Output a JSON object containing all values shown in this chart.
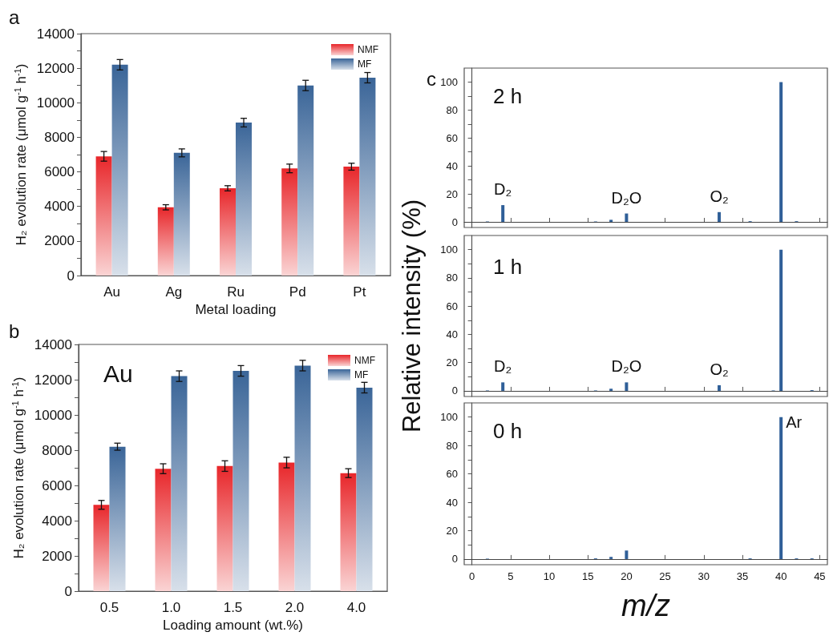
{
  "chart_data": [
    {
      "type": "bar",
      "title": "a",
      "xlabel": "Metal loading",
      "ylabel": "H₂ evolution rate (μmol g$^{-1}$ h$^{-1}$)",
      "categories": [
        "Au",
        "Ag",
        "Ru",
        "Pd",
        "Pt"
      ],
      "series": [
        {
          "name": "NMF",
          "color": "#e8262a",
          "values": [
            6900,
            3950,
            5050,
            6200,
            6300
          ],
          "errors": [
            280,
            150,
            150,
            250,
            200
          ]
        },
        {
          "name": "MF",
          "color": "#3a6598",
          "values": [
            12200,
            7100,
            8850,
            11000,
            11450
          ],
          "errors": [
            300,
            230,
            250,
            300,
            300
          ]
        }
      ],
      "ylim": [
        0,
        14000
      ],
      "yticks": [
        0,
        {
          "value": 1000,
          "label": null
        },
        2000,
        {
          "value": 3000,
          "label": null
        },
        4000,
        {
          "value": 5000,
          "label": null
        },
        6000,
        {
          "value": 7000,
          "label": null
        },
        8000,
        {
          "value": 9000,
          "label": null
        },
        10000,
        {
          "value": 11000,
          "label": null
        },
        12000,
        {
          "value": 13000,
          "label": null
        },
        14000
      ],
      "legend": "top right"
    },
    {
      "type": "bar",
      "title": "b",
      "subtitle": "Au",
      "xlabel": "Loading amount (wt.%)",
      "ylabel": "H₂ evolution rate (μmol g$^{-1}$ h$^{-1}$)",
      "categories": [
        "0.5",
        "1.0",
        "1.5",
        "2.0",
        "4.0"
      ],
      "series": [
        {
          "name": "NMF",
          "color": "#e8262a",
          "values": [
            4900,
            6950,
            7100,
            7300,
            6700
          ],
          "errors": [
            250,
            280,
            300,
            300,
            250
          ]
        },
        {
          "name": "MF",
          "color": "#3a6598",
          "values": [
            8200,
            12200,
            12500,
            12800,
            11550
          ],
          "errors": [
            200,
            300,
            300,
            300,
            300
          ]
        }
      ],
      "ylim": [
        0,
        14000
      ],
      "yticks": [
        0,
        {
          "value": 1000,
          "label": null
        },
        2000,
        {
          "value": 3000,
          "label": null
        },
        4000,
        {
          "value": 5000,
          "label": null
        },
        6000,
        {
          "value": 7000,
          "label": null
        },
        8000,
        {
          "value": 9000,
          "label": null
        },
        10000,
        {
          "value": 11000,
          "label": null
        },
        12000,
        {
          "value": 13000,
          "label": null
        },
        14000
      ],
      "legend": "top right"
    },
    {
      "type": "bar",
      "title": "c",
      "subtitle": "2 h",
      "color": "#2f5f98",
      "x": [
        2,
        4,
        16,
        18,
        20,
        32,
        36,
        40,
        42
      ],
      "values": [
        0.3,
        12,
        0.3,
        1.5,
        6,
        7,
        0.5,
        100,
        0.5
      ],
      "xlim": [
        -1,
        46
      ],
      "xticks": [
        0,
        5,
        10,
        15,
        20,
        25,
        30,
        35,
        40,
        45
      ],
      "ylim": [
        -4,
        110
      ],
      "yticks": [
        0,
        {
          "value": 10,
          "label": null
        },
        20,
        {
          "value": 30,
          "label": null
        },
        40,
        {
          "value": 50,
          "label": null
        },
        60,
        {
          "value": 70,
          "label": null
        },
        80,
        {
          "value": 90,
          "label": null
        },
        100
      ],
      "tick_labels": "y",
      "ref_lines": [
        {
          "axis": "y",
          "value": 0
        }
      ],
      "annotations": [
        {
          "text": "D₂",
          "x": 4,
          "y": 12
        },
        {
          "text": "D₂O",
          "x": 20,
          "y": 6
        },
        {
          "text": "O₂",
          "x": 32,
          "y": 7
        }
      ]
    },
    {
      "type": "bar",
      "subtitle": "1 h",
      "ylabel": "Relative intensity (%)",
      "color": "#2f5f98",
      "x": [
        2,
        4,
        16,
        18,
        20,
        32,
        39,
        40,
        44
      ],
      "values": [
        0.3,
        6,
        0.3,
        1.5,
        6,
        4,
        0.3,
        100,
        0.5
      ],
      "xlim": [
        -1,
        46
      ],
      "xticks": [
        0,
        5,
        10,
        15,
        20,
        25,
        30,
        35,
        40,
        45
      ],
      "ylim": [
        -4,
        110
      ],
      "yticks": [
        0,
        {
          "value": 10,
          "label": null
        },
        20,
        {
          "value": 30,
          "label": null
        },
        40,
        {
          "value": 50,
          "label": null
        },
        60,
        {
          "value": 70,
          "label": null
        },
        80,
        {
          "value": 90,
          "label": null
        },
        100
      ],
      "tick_labels": "y",
      "ref_lines": [
        {
          "axis": "y",
          "value": 0
        }
      ],
      "annotations": [
        {
          "text": "D₂",
          "x": 4,
          "y": 6
        },
        {
          "text": "D₂O",
          "x": 20,
          "y": 6
        },
        {
          "text": "O₂",
          "x": 32,
          "y": 4
        }
      ]
    },
    {
      "type": "bar",
      "subtitle": "0 h",
      "xlabel": "m/z",
      "color": "#2f5f98",
      "x": [
        2,
        16,
        18,
        20,
        36,
        40,
        42,
        44
      ],
      "values": [
        0.3,
        0.5,
        1.5,
        6,
        0.5,
        100,
        0.5,
        0.5
      ],
      "xlim": [
        -1,
        46
      ],
      "xticks": [
        0,
        5,
        10,
        15,
        20,
        25,
        30,
        35,
        40,
        45
      ],
      "ylim": [
        -4,
        110
      ],
      "yticks": [
        0,
        {
          "value": 10,
          "label": null
        },
        20,
        {
          "value": 30,
          "label": null
        },
        40,
        {
          "value": 50,
          "label": null
        },
        60,
        {
          "value": 70,
          "label": null
        },
        80,
        {
          "value": 90,
          "label": null
        },
        100
      ],
      "ref_lines": [
        {
          "axis": "y",
          "value": 0
        }
      ],
      "annotations": [
        {
          "text": "Ar",
          "x": 40,
          "y": 100
        }
      ]
    }
  ]
}
